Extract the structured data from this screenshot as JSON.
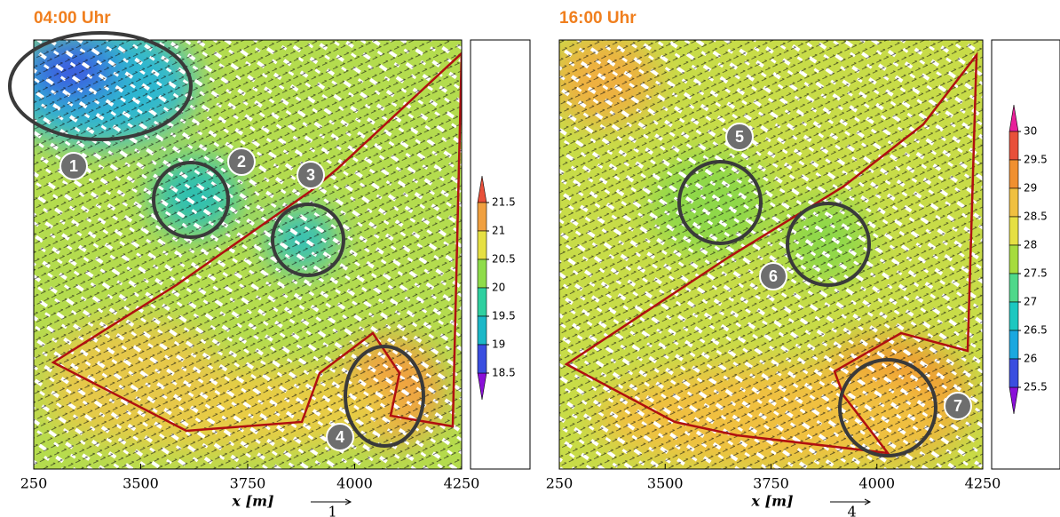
{
  "chart_data": [
    {
      "type": "heatmap",
      "title": "04:00 Uhr",
      "xlabel": "x [m]",
      "vector_scale": "1",
      "xlim": [
        3250,
        4250
      ],
      "xticks": [
        {
          "value": 3250,
          "label": "250"
        },
        3500,
        3750,
        4000,
        4250
      ],
      "colorbar": {
        "ticks": [
          21.5,
          21,
          20.5,
          20,
          19.5,
          19,
          18.5
        ],
        "colors": [
          "#8a10d8",
          "#3a4ee0",
          "#1cb8c8",
          "#2fd0a0",
          "#8fdc4a",
          "#e6e043",
          "#f0a040",
          "#e8503a"
        ]
      },
      "annotations": [
        "1",
        "2",
        "3",
        "4"
      ]
    },
    {
      "type": "heatmap",
      "title": "16:00 Uhr",
      "xlabel": "x [m]",
      "vector_scale": "4",
      "xlim": [
        3250,
        4250
      ],
      "xticks": [
        {
          "value": 3250,
          "label": "250"
        },
        3500,
        3750,
        4000,
        4250
      ],
      "colorbar": {
        "ticks": [
          30,
          29.5,
          29,
          28.5,
          28,
          27.5,
          27,
          26.5,
          26,
          25.5
        ],
        "colors": [
          "#8a10d8",
          "#3a4ee0",
          "#1aa8e0",
          "#1cc8c0",
          "#4fd88a",
          "#a6dc3e",
          "#e6e043",
          "#f0c040",
          "#f09030",
          "#e8503a",
          "#e8209a"
        ]
      },
      "annotations": [
        "5",
        "6",
        "7"
      ]
    }
  ]
}
